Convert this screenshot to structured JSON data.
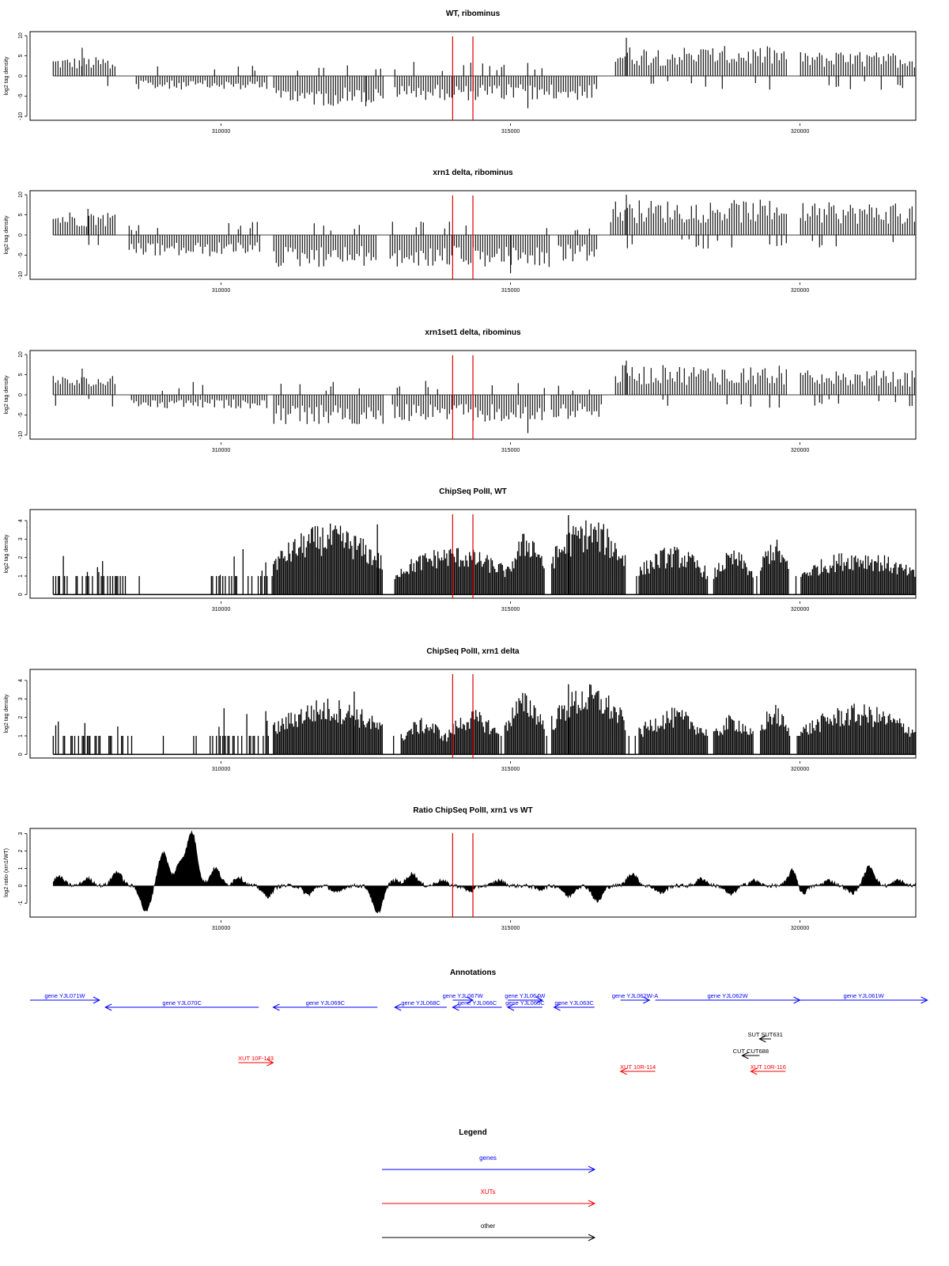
{
  "figure": {
    "x_ticks": [
      310000,
      315000,
      320000
    ],
    "x_domain": [
      306700,
      322000
    ],
    "marker_color": "#e00000",
    "marker_positions": [
      314000,
      314350
    ],
    "tracks_x_start": 307100,
    "tracks_x_end": 322000
  },
  "chart_data": [
    {
      "type": "bar",
      "title": "WT, ribominus",
      "ylabel": "log2 tag density",
      "yticks": [
        10,
        5,
        0,
        -5,
        -10
      ],
      "ylim": [
        -11,
        11
      ],
      "signal": {
        "kind": "strand",
        "gaps": [
          [
            308300,
            308500
          ],
          [
            310800,
            310900
          ],
          [
            312800,
            313000
          ],
          [
            316600,
            316700
          ],
          [
            319800,
            320000
          ]
        ],
        "plus_segments": [
          [
            307100,
            308200,
            3.5
          ],
          [
            316800,
            319800,
            5.5
          ],
          [
            320000,
            322000,
            4.5
          ]
        ],
        "minus_segments": [
          [
            308500,
            310800,
            -2.5
          ],
          [
            310900,
            312800,
            -5.5
          ],
          [
            313000,
            316500,
            -4.5
          ]
        ],
        "spikes": [
          [
            307600,
            7
          ],
          [
            317000,
            9.5
          ],
          [
            315300,
            -8
          ],
          [
            312500,
            -7.5
          ]
        ]
      }
    },
    {
      "type": "bar",
      "title": "xrn1 delta, ribominus",
      "ylabel": "log2 tag density",
      "yticks": [
        10,
        5,
        0,
        -5,
        -10
      ],
      "ylim": [
        -11,
        11
      ],
      "signal": {
        "kind": "strand",
        "gaps": [
          [
            308300,
            308400
          ],
          [
            310700,
            310900
          ],
          [
            312700,
            312900
          ],
          [
            315700,
            315800
          ],
          [
            316500,
            316600
          ],
          [
            319800,
            320000
          ]
        ],
        "plus_segments": [
          [
            307100,
            308200,
            4.5
          ],
          [
            316700,
            319800,
            6.5
          ],
          [
            320000,
            322000,
            6
          ]
        ],
        "minus_segments": [
          [
            308400,
            310700,
            -4
          ],
          [
            310900,
            312700,
            -6
          ],
          [
            312900,
            315700,
            -6
          ],
          [
            315800,
            316500,
            -5
          ]
        ],
        "spikes": [
          [
            317000,
            10
          ],
          [
            315000,
            -9.5
          ],
          [
            307700,
            6.5
          ]
        ]
      }
    },
    {
      "type": "bar",
      "title": "xrn1set1 delta, ribominus",
      "ylabel": "log2 tag density",
      "yticks": [
        10,
        5,
        0,
        -5,
        -10
      ],
      "ylim": [
        -11,
        11
      ],
      "signal": {
        "kind": "strand",
        "gaps": [
          [
            308300,
            308450
          ],
          [
            310800,
            310900
          ],
          [
            312800,
            312950
          ],
          [
            315600,
            315700
          ],
          [
            316600,
            316700
          ],
          [
            319800,
            320000
          ]
        ],
        "plus_segments": [
          [
            307100,
            308200,
            3.5
          ],
          [
            316800,
            319800,
            5.5
          ],
          [
            320000,
            322000,
            4.5
          ]
        ],
        "minus_segments": [
          [
            308450,
            310800,
            -2.5
          ],
          [
            310900,
            312800,
            -5.5
          ],
          [
            312950,
            315600,
            -5
          ],
          [
            315700,
            316600,
            -4.5
          ]
        ],
        "spikes": [
          [
            317000,
            8.5
          ],
          [
            315300,
            -9.5
          ],
          [
            307600,
            6.5
          ]
        ]
      }
    },
    {
      "type": "bar",
      "title": "ChipSeq PolII, WT",
      "ylabel": "log2 tag density",
      "yticks": [
        4,
        3,
        2,
        1,
        0
      ],
      "ylim": [
        -0.2,
        4.6
      ],
      "signal": {
        "kind": "coverage",
        "low_ranges": [
          [
            307100,
            308400
          ],
          [
            309800,
            310800
          ]
        ],
        "gaps": [
          [
            308400,
            309800
          ]
        ],
        "blocks": [
          [
            310900,
            312800,
            3.5
          ],
          [
            313000,
            315000,
            2.4
          ],
          [
            315000,
            315600,
            3.2
          ],
          [
            315700,
            317000,
            3.8
          ],
          [
            317200,
            318400,
            2.4
          ],
          [
            318500,
            319200,
            2.2
          ],
          [
            319300,
            319800,
            2.8
          ],
          [
            320000,
            322000,
            2.2
          ]
        ],
        "spikes": [
          [
            316000,
            4.3
          ],
          [
            312700,
            3.8
          ]
        ]
      }
    },
    {
      "type": "bar",
      "title": "ChipSeq PolII, xrn1 delta",
      "ylabel": "log2 tag density",
      "yticks": [
        4,
        3,
        2,
        1,
        0
      ],
      "ylim": [
        -0.2,
        4.6
      ],
      "signal": {
        "kind": "coverage",
        "low_ranges": [
          [
            307100,
            308400
          ],
          [
            309800,
            310800
          ]
        ],
        "gaps": [
          [
            308400,
            309800
          ]
        ],
        "blocks": [
          [
            310900,
            312800,
            2.8
          ],
          [
            313100,
            313900,
            1.8
          ],
          [
            313900,
            314800,
            2.2
          ],
          [
            314900,
            315600,
            3.1
          ],
          [
            315700,
            317000,
            3.5
          ],
          [
            317200,
            318400,
            2.3
          ],
          [
            318500,
            319200,
            2.0
          ],
          [
            319300,
            319800,
            2.5
          ],
          [
            320000,
            322000,
            2.5
          ]
        ],
        "spikes": [
          [
            316000,
            3.8
          ],
          [
            312300,
            3.4
          ]
        ]
      }
    },
    {
      "type": "area",
      "title": "Ratio ChipSeq PolII, xrn1 vs WT",
      "ylabel": "log2 ratio (xrn1/WT)",
      "yticks": [
        3,
        2,
        1,
        0,
        -1
      ],
      "ylim": [
        -1.8,
        3.3
      ],
      "signal": {
        "kind": "ratio",
        "peaks": [
          [
            307200,
            0.5
          ],
          [
            307700,
            0.4
          ],
          [
            308200,
            0.8
          ],
          [
            308700,
            -1.5
          ],
          [
            309000,
            1.9
          ],
          [
            309300,
            1.3
          ],
          [
            309500,
            3.0
          ],
          [
            309900,
            1.0
          ],
          [
            310300,
            0.5
          ],
          [
            310800,
            -0.6
          ],
          [
            311500,
            -0.5
          ],
          [
            312000,
            -0.4
          ],
          [
            312700,
            -1.6
          ],
          [
            313000,
            0.3
          ],
          [
            313300,
            0.7
          ],
          [
            313800,
            0.3
          ],
          [
            314300,
            -0.3
          ],
          [
            314800,
            0.3
          ],
          [
            315500,
            -0.2
          ],
          [
            316000,
            -0.6
          ],
          [
            316500,
            -0.9
          ],
          [
            317100,
            0.7
          ],
          [
            317600,
            -0.4
          ],
          [
            318300,
            0.4
          ],
          [
            318800,
            -0.5
          ],
          [
            319200,
            0.3
          ],
          [
            319900,
            1.2
          ],
          [
            320000,
            -0.8
          ],
          [
            320500,
            0.3
          ],
          [
            320900,
            -0.4
          ],
          [
            321200,
            1.1
          ],
          [
            321700,
            0.3
          ]
        ]
      }
    }
  ],
  "annotations": {
    "title": "Annotations",
    "features": [
      {
        "label": "gene YJL071W",
        "kind": "gene",
        "dir": "right",
        "start": 306200,
        "end": 307900,
        "row": 0
      },
      {
        "label": "gene YJL070C",
        "kind": "gene",
        "dir": "left",
        "start": 308000,
        "end": 310650,
        "row": 1
      },
      {
        "label": "gene YJL069C",
        "kind": "gene",
        "dir": "left",
        "start": 310900,
        "end": 312700,
        "row": 1
      },
      {
        "label": "gene YJL068C",
        "kind": "gene",
        "dir": "left",
        "start": 313000,
        "end": 313900,
        "row": 1
      },
      {
        "label": "gene YJL067W",
        "kind": "gene",
        "dir": "right",
        "start": 314000,
        "end": 314350,
        "row": 0
      },
      {
        "label": "gene YJL066C",
        "kind": "gene",
        "dir": "left",
        "start": 314000,
        "end": 314850,
        "row": 1
      },
      {
        "label": "gene YJL064W",
        "kind": "gene",
        "dir": "right",
        "start": 314950,
        "end": 315550,
        "row": 0
      },
      {
        "label": "gene YJL065C",
        "kind": "gene",
        "dir": "left",
        "start": 314950,
        "end": 315550,
        "row": 1
      },
      {
        "label": "gene YJL063C",
        "kind": "gene",
        "dir": "left",
        "start": 315750,
        "end": 316450,
        "row": 1
      },
      {
        "label": "gene YJL062W-A",
        "kind": "gene",
        "dir": "right",
        "start": 316900,
        "end": 317400,
        "row": 0
      },
      {
        "label": "gene YJL062W",
        "kind": "gene",
        "dir": "right",
        "start": 317500,
        "end": 320000,
        "row": 0
      },
      {
        "label": "gene YJL061W",
        "kind": "gene",
        "dir": "right",
        "start": 320000,
        "end": 322200,
        "row": 0
      },
      {
        "label": "SUT SUT631",
        "kind": "other",
        "dir": "left",
        "start": 319300,
        "end": 319500,
        "row": 3
      },
      {
        "label": "CUT CUT688",
        "kind": "other",
        "dir": "left",
        "start": 319000,
        "end": 319300,
        "row": 4
      },
      {
        "label": "XUT 10F-143",
        "kind": "xut",
        "dir": "right",
        "start": 310300,
        "end": 310900,
        "row": 5
      },
      {
        "label": "XUT 10R-114",
        "kind": "xut",
        "dir": "left",
        "start": 316900,
        "end": 317500,
        "row": 6
      },
      {
        "label": "XUT 10R-116",
        "kind": "xut",
        "dir": "left",
        "start": 319150,
        "end": 319750,
        "row": 6
      }
    ]
  },
  "legend": {
    "title": "Legend",
    "items": [
      {
        "label": "genes",
        "color": "#0000ff"
      },
      {
        "label": "XUTs",
        "color": "#ff0000"
      },
      {
        "label": "other",
        "color": "#000000"
      }
    ]
  },
  "colors": {
    "gene": "#0000ff",
    "xut": "#ff0000",
    "other": "#000000"
  }
}
